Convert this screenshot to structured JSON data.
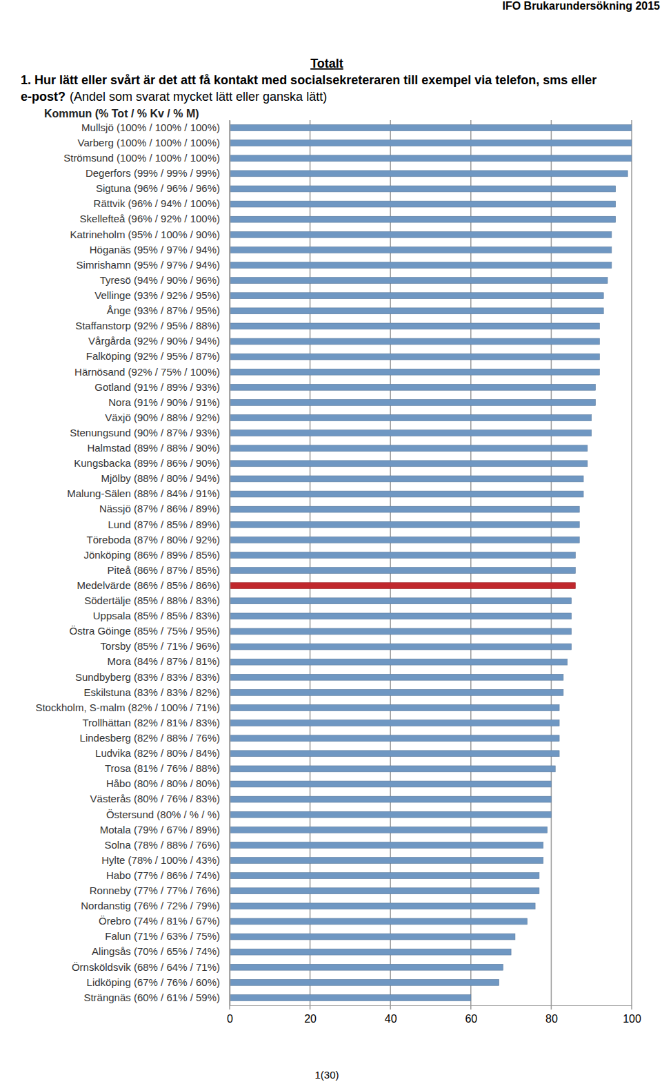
{
  "header": "IFO Brukarundersökning 2015",
  "section": "Totalt",
  "page_number": "1(30)",
  "chart_data": {
    "type": "bar",
    "orientation": "horizontal",
    "title": "1. Hur lätt eller svårt är det att få kontakt med socialsekreteraren  till exempel via telefon, sms eller e-post?",
    "subtitle": "(Andel som svarat mycket lätt eller ganska lätt)",
    "y_label": "Kommun (% Tot / % Kv / % M)",
    "categories": [
      "Mullsjö (100% / 100% / 100%)",
      "Varberg (100% / 100% / 100%)",
      "Strömsund (100% / 100% / 100%)",
      "Degerfors (99% / 99% / 99%)",
      "Sigtuna (96% / 96% / 96%)",
      "Rättvik (96% / 94% / 100%)",
      "Skellefteå (96% / 92% / 100%)",
      "Katrineholm (95% / 100% / 90%)",
      "Höganäs (95% / 97% / 94%)",
      "Simrishamn (95% / 97% / 94%)",
      "Tyresö (94% / 90% / 96%)",
      "Vellinge (93% / 92% / 95%)",
      "Ånge (93% / 87% / 95%)",
      "Staffanstorp (92% / 95% / 88%)",
      "Vårgårda (92% / 90% / 94%)",
      "Falköping (92% / 95% / 87%)",
      "Härnösand (92% / 75% / 100%)",
      "Gotland (91% / 89% / 93%)",
      "Nora (91% / 90% / 91%)",
      "Växjö (90% / 88% / 92%)",
      "Stenungsund (90% / 87% / 93%)",
      "Halmstad (89% / 88% / 90%)",
      "Kungsbacka (89% / 86% / 90%)",
      "Mjölby (88% / 80% / 94%)",
      "Malung-Sälen (88% / 84% / 91%)",
      "Nässjö (87% / 86% / 89%)",
      "Lund (87% / 85% / 89%)",
      "Töreboda (87% / 80% / 92%)",
      "Jönköping (86% / 89% / 85%)",
      "Piteå (86% / 87% / 85%)",
      "Medelvärde (86% / 85% / 86%)",
      "Södertälje (85% / 88% / 83%)",
      "Uppsala (85% / 85% / 83%)",
      "Östra Göinge (85% / 75% / 95%)",
      "Torsby (85% / 71% / 96%)",
      "Mora (84% / 87% / 81%)",
      "Sundbyberg (83% / 83% / 83%)",
      "Eskilstuna (83% / 83% / 82%)",
      "Stockholm, S-malm (82% / 100% / 71%)",
      "Trollhättan (82% / 81% / 83%)",
      "Lindesberg (82% / 88% / 76%)",
      "Ludvika (82% / 80% / 84%)",
      "Trosa (81% / 76% / 88%)",
      "Håbo (80% / 80% / 80%)",
      "Västerås (80% / 76% / 83%)",
      "Östersund (80% /  % /  %)",
      "Motala (79% / 67% / 89%)",
      "Solna (78% / 88% / 76%)",
      "Hylte (78% / 100% / 43%)",
      "Habo (77% / 86% / 74%)",
      "Ronneby (77% / 77% / 76%)",
      "Nordanstig (76% / 72% / 79%)",
      "Örebro (74% / 81% / 67%)",
      "Falun (71% / 63% / 75%)",
      "Alingsås (70% / 65% / 74%)",
      "Örnsköldsvik (68% / 64% / 71%)",
      "Lidköping (67% / 76% / 60%)",
      "Strängnäs (60% / 61% / 59%)"
    ],
    "values": [
      100,
      100,
      100,
      99,
      96,
      96,
      96,
      95,
      95,
      95,
      94,
      93,
      93,
      92,
      92,
      92,
      92,
      91,
      91,
      90,
      90,
      89,
      89,
      88,
      88,
      87,
      87,
      87,
      86,
      86,
      86,
      85,
      85,
      85,
      85,
      84,
      83,
      83,
      82,
      82,
      82,
      82,
      81,
      80,
      80,
      80,
      79,
      78,
      78,
      77,
      77,
      76,
      74,
      71,
      70,
      68,
      67,
      60
    ],
    "colors": [
      "#6f97c2",
      "#6f97c2",
      "#6f97c2",
      "#6f97c2",
      "#6f97c2",
      "#6f97c2",
      "#6f97c2",
      "#6f97c2",
      "#6f97c2",
      "#6f97c2",
      "#6f97c2",
      "#6f97c2",
      "#6f97c2",
      "#6f97c2",
      "#6f97c2",
      "#6f97c2",
      "#6f97c2",
      "#6f97c2",
      "#6f97c2",
      "#6f97c2",
      "#6f97c2",
      "#6f97c2",
      "#6f97c2",
      "#6f97c2",
      "#6f97c2",
      "#6f97c2",
      "#6f97c2",
      "#6f97c2",
      "#6f97c2",
      "#6f97c2",
      "#c0282d",
      "#6f97c2",
      "#6f97c2",
      "#6f97c2",
      "#6f97c2",
      "#6f97c2",
      "#6f97c2",
      "#6f97c2",
      "#6f97c2",
      "#6f97c2",
      "#6f97c2",
      "#6f97c2",
      "#6f97c2",
      "#6f97c2",
      "#6f97c2",
      "#6f97c2",
      "#6f97c2",
      "#6f97c2",
      "#6f97c2",
      "#6f97c2",
      "#6f97c2",
      "#6f97c2",
      "#6f97c2",
      "#6f97c2",
      "#6f97c2",
      "#6f97c2",
      "#6f97c2",
      "#6f97c2"
    ],
    "xlim": [
      0,
      100
    ],
    "xticks": [
      0,
      20,
      40,
      60,
      80,
      100
    ],
    "grid": true
  }
}
